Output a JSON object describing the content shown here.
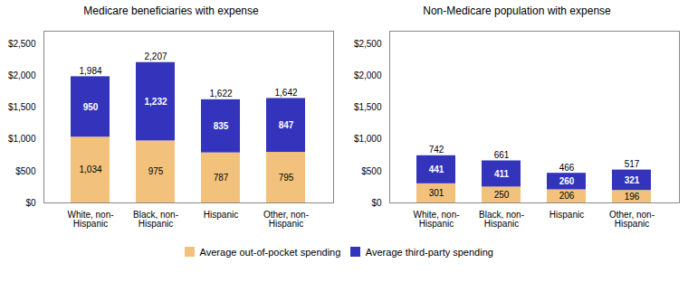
{
  "chart_data": [
    {
      "type": "bar",
      "title": "Medicare beneficiaries with expense",
      "categories": [
        "White, non-\nHispanic",
        "Black, non-\nHispanic",
        "Hispanic",
        "Other, non-\nHispanic"
      ],
      "series": [
        {
          "name": "Average out-of-pocket spending",
          "color": "#F2C27C",
          "values": [
            1034,
            975,
            787,
            795
          ],
          "value_labels": [
            "1,034",
            "975",
            "787",
            "795"
          ]
        },
        {
          "name": "Average third-party spending",
          "color": "#3333BB",
          "values": [
            950,
            1232,
            835,
            847
          ],
          "value_labels": [
            "950",
            "1,232",
            "835",
            "847"
          ]
        }
      ],
      "totals": [
        1984,
        2207,
        1622,
        1642
      ],
      "total_labels": [
        "1,984",
        "2,207",
        "1,622",
        "1,642"
      ],
      "stacked": true,
      "data_labels": true,
      "grid": false,
      "legend": "bottom",
      "ylim": [
        0,
        2700
      ],
      "yticks": [
        {
          "value": 0,
          "label": "$0"
        },
        {
          "value": 500,
          "label": "$500"
        },
        {
          "value": 1000,
          "label": "$1,000"
        },
        {
          "value": 1500,
          "label": "$1,500"
        },
        {
          "value": 2000,
          "label": "$2,000"
        },
        {
          "value": 2500,
          "label": "$2,500"
        }
      ]
    },
    {
      "type": "bar",
      "title": "Non-Medicare population with expense",
      "categories": [
        "White, non-\nHispanic",
        "Black, non-\nHispanic",
        "Hispanic",
        "Other, non-\nHispanic"
      ],
      "series": [
        {
          "name": "Average out-of-pocket spending",
          "color": "#F2C27C",
          "values": [
            301,
            250,
            206,
            196
          ],
          "value_labels": [
            "301",
            "250",
            "206",
            "196"
          ]
        },
        {
          "name": "Average third-party spending",
          "color": "#3333BB",
          "values": [
            441,
            411,
            260,
            321
          ],
          "value_labels": [
            "441",
            "411",
            "260",
            "321"
          ]
        }
      ],
      "totals": [
        742,
        661,
        466,
        517
      ],
      "total_labels": [
        "742",
        "661",
        "466",
        "517"
      ],
      "stacked": true,
      "data_labels": true,
      "grid": false,
      "legend": "bottom",
      "ylim": [
        0,
        2700
      ],
      "yticks": [
        {
          "value": 0,
          "label": "$0"
        },
        {
          "value": 500,
          "label": "$500"
        },
        {
          "value": 1000,
          "label": "$1,000"
        },
        {
          "value": 1500,
          "label": "$1,500"
        },
        {
          "value": 2000,
          "label": "$2,000"
        },
        {
          "value": 2500,
          "label": "$2,500"
        }
      ]
    }
  ]
}
